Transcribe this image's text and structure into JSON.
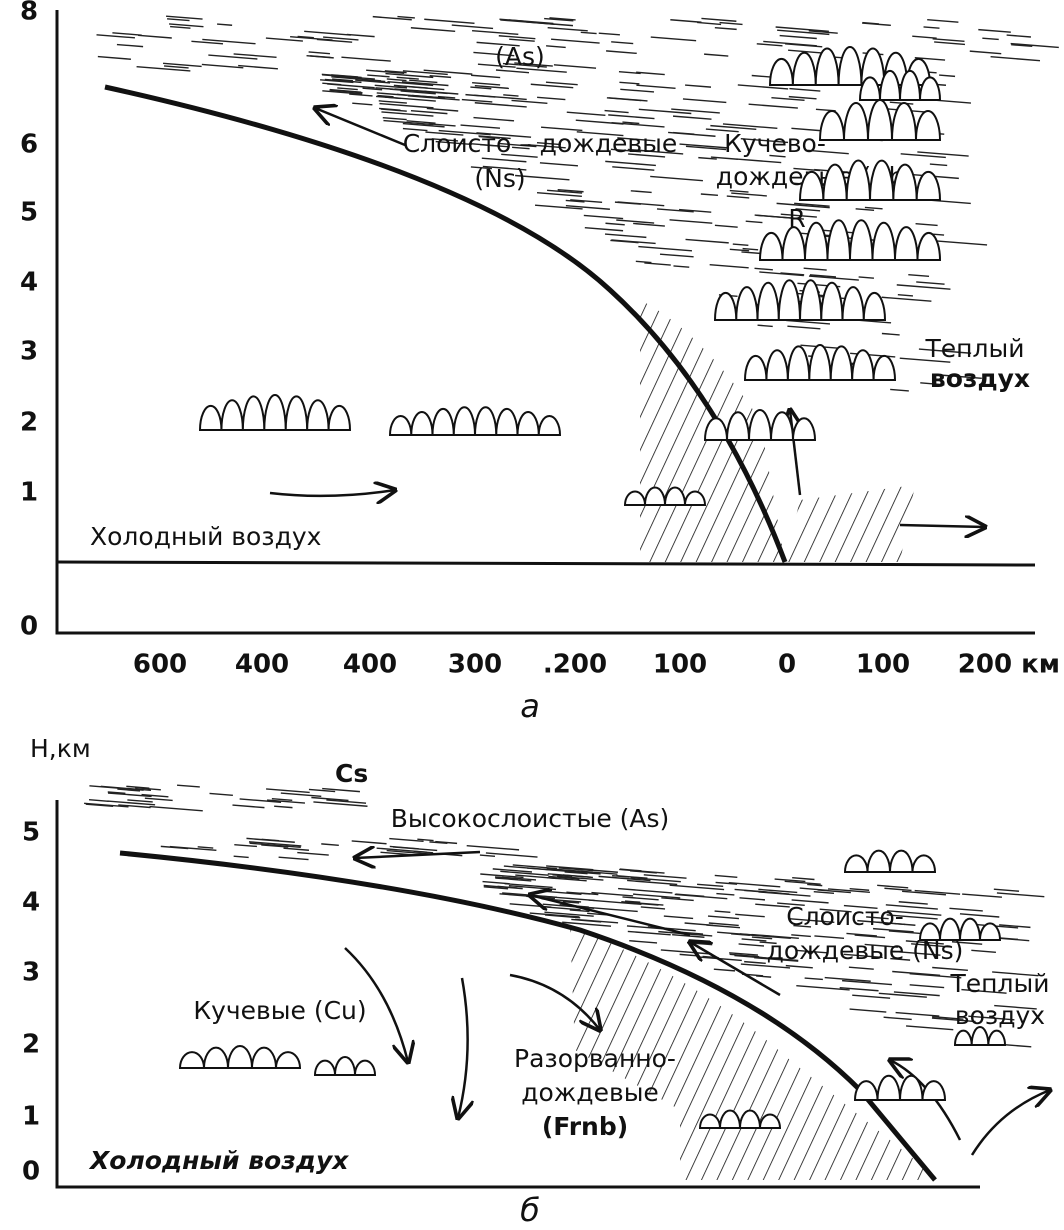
{
  "panel_a": {
    "label": "а",
    "y_ticks": [
      "8",
      "6",
      "5",
      "4",
      "3",
      "2",
      "1",
      "0"
    ],
    "x_ticks": [
      "600",
      "400",
      "400",
      "300",
      ".200",
      "100",
      "0",
      "100",
      "200 км"
    ],
    "texts": {
      "as": "(As)",
      "ns_name": "Слоисто – дождевые",
      "ns_code": "(Ns)",
      "cb_line1": "Кучево-",
      "cb_line2": "дождевые (Cb)",
      "r": "R",
      "warm_line1": "Теплый",
      "warm_line2": "воздух",
      "cold": "Холодный воздух"
    }
  },
  "panel_b": {
    "label": "б",
    "axis_title": "H,км",
    "y_ticks": [
      "5",
      "4",
      "3",
      "2",
      "1",
      "0"
    ],
    "texts": {
      "cs": "Cs",
      "as": "Высокослоистые (As)",
      "ns_line1": "Слоисто-",
      "ns_line2": "дождевые (Ns)",
      "warm_line1": "Теплый",
      "warm_line2": "воздух",
      "cu": "Кучевые (Cu)",
      "frnb_line1": "Разорванно-",
      "frnb_line2": "дождевые",
      "frnb_line3": "(Frnb)",
      "cold": "Холодный воздух"
    }
  }
}
